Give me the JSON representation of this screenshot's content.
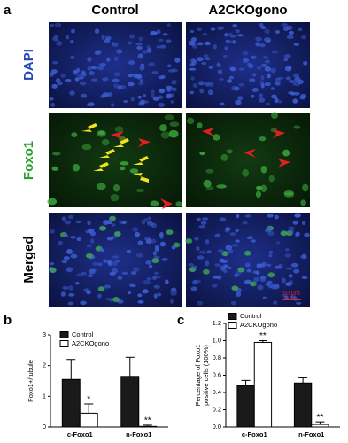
{
  "panel_a": {
    "label": "a",
    "columns": [
      "Control",
      "A2CKOgono"
    ],
    "rows": [
      "DAPI",
      "Foxo1",
      "Merged"
    ],
    "scale_bar": "50 μm"
  },
  "chart_data": [
    {
      "type": "bar",
      "label": "b",
      "ylabel": [
        "Foxo1+/tubule"
      ],
      "categories": [
        "c-Foxo1",
        "n-Foxo1"
      ],
      "series": [
        {
          "name": "Control",
          "color": "#1a1a1a",
          "values": [
            1.55,
            1.65
          ],
          "errors": [
            0.65,
            0.62
          ]
        },
        {
          "name": "A2CKOgono",
          "color": "#ffffff",
          "values": [
            0.45,
            0.02
          ],
          "errors": [
            0.3,
            0.04
          ]
        }
      ],
      "annotations": [
        {
          "text": "*",
          "category": 0,
          "series": 1
        },
        {
          "text": "**",
          "category": 1,
          "series": 1
        }
      ],
      "ylim": [
        0,
        3
      ],
      "yticks": [
        0,
        1,
        2,
        3
      ]
    },
    {
      "type": "bar",
      "label": "c",
      "ylabel": [
        "Percentage of Foxo1",
        "positive cells (100%)"
      ],
      "categories": [
        "c-Foxo1",
        "n-Foxo1"
      ],
      "series": [
        {
          "name": "Control",
          "color": "#1a1a1a",
          "values": [
            0.48,
            0.51
          ],
          "errors": [
            0.06,
            0.06
          ]
        },
        {
          "name": "A2CKOgono",
          "color": "#ffffff",
          "values": [
            0.98,
            0.03
          ],
          "errors": [
            0.02,
            0.03
          ]
        }
      ],
      "annotations": [
        {
          "text": "**",
          "category": 0,
          "series": 1
        },
        {
          "text": "**",
          "category": 1,
          "series": 1
        }
      ],
      "ylim": [
        0,
        1.2
      ],
      "yticks": [
        {
          "value": 0,
          "label": "0.0"
        },
        0.2,
        0.4,
        0.6,
        0.8,
        {
          "value": 1,
          "label": "1.0"
        },
        1.2
      ]
    }
  ]
}
